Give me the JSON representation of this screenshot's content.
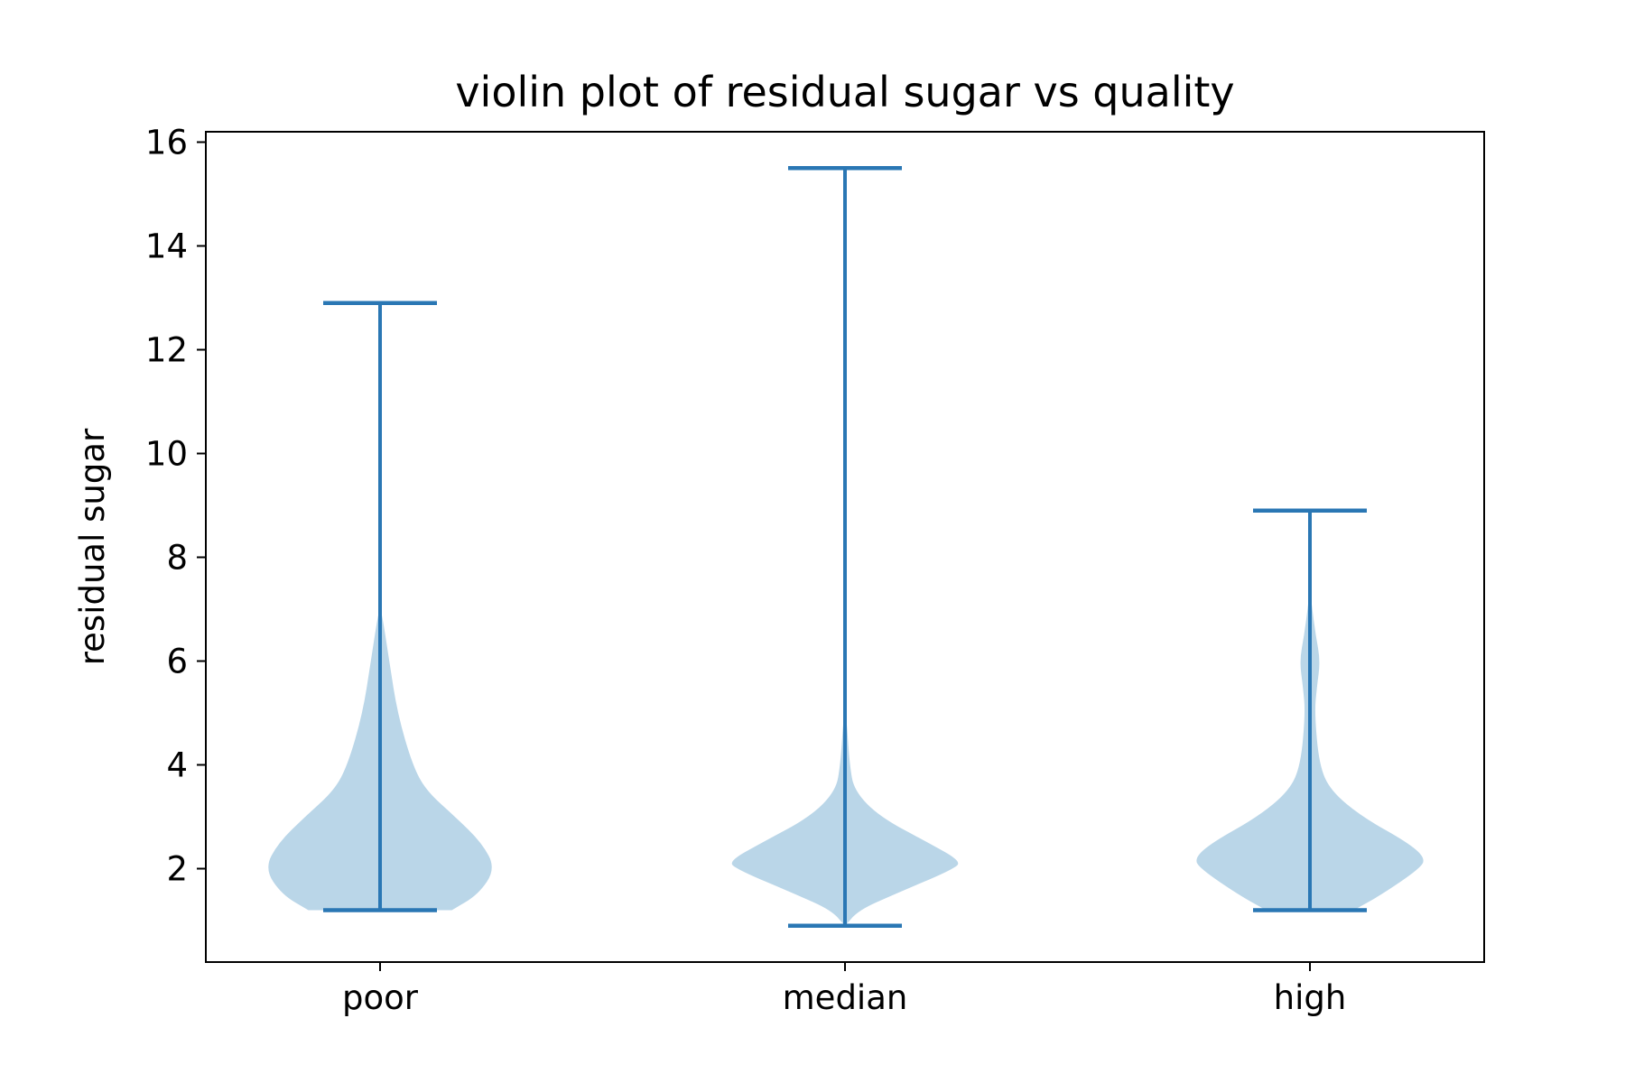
{
  "chart_data": {
    "type": "violin",
    "title": "violin plot of residual sugar vs quality",
    "xlabel": "",
    "ylabel": "residual sugar",
    "categories": [
      "poor",
      "median",
      "high"
    ],
    "ylim": [
      0.2,
      16.2
    ],
    "yticks": [
      2,
      4,
      6,
      8,
      10,
      12,
      14,
      16
    ],
    "grid": false,
    "colors": {
      "body": "#bad6e8",
      "line": "#2a77b4"
    },
    "violins": [
      {
        "category": "poor",
        "min": 1.2,
        "max": 12.9,
        "density": [
          [
            1.2,
            0.62
          ],
          [
            1.5,
            0.85
          ],
          [
            2.0,
            1.0
          ],
          [
            2.5,
            0.88
          ],
          [
            3.0,
            0.65
          ],
          [
            3.5,
            0.4
          ],
          [
            4.0,
            0.28
          ],
          [
            5.0,
            0.15
          ],
          [
            6.0,
            0.08
          ],
          [
            7.0,
            0.01
          ]
        ]
      },
      {
        "category": "median",
        "min": 0.9,
        "max": 15.5,
        "density": [
          [
            0.9,
            0.0
          ],
          [
            1.2,
            0.12
          ],
          [
            1.5,
            0.42
          ],
          [
            2.0,
            0.95
          ],
          [
            2.15,
            1.0
          ],
          [
            2.5,
            0.72
          ],
          [
            3.0,
            0.3
          ],
          [
            3.5,
            0.08
          ],
          [
            4.0,
            0.04
          ],
          [
            5.0,
            0.01
          ]
        ]
      },
      {
        "category": "high",
        "min": 1.2,
        "max": 8.9,
        "density": [
          [
            1.2,
            0.38
          ],
          [
            1.5,
            0.62
          ],
          [
            2.0,
            0.95
          ],
          [
            2.2,
            1.0
          ],
          [
            2.5,
            0.85
          ],
          [
            3.0,
            0.45
          ],
          [
            3.5,
            0.18
          ],
          [
            4.0,
            0.08
          ],
          [
            5.0,
            0.04
          ],
          [
            5.5,
            0.06
          ],
          [
            6.0,
            0.09
          ],
          [
            6.5,
            0.05
          ],
          [
            7.0,
            0.02
          ],
          [
            7.4,
            0.0
          ]
        ]
      }
    ]
  }
}
